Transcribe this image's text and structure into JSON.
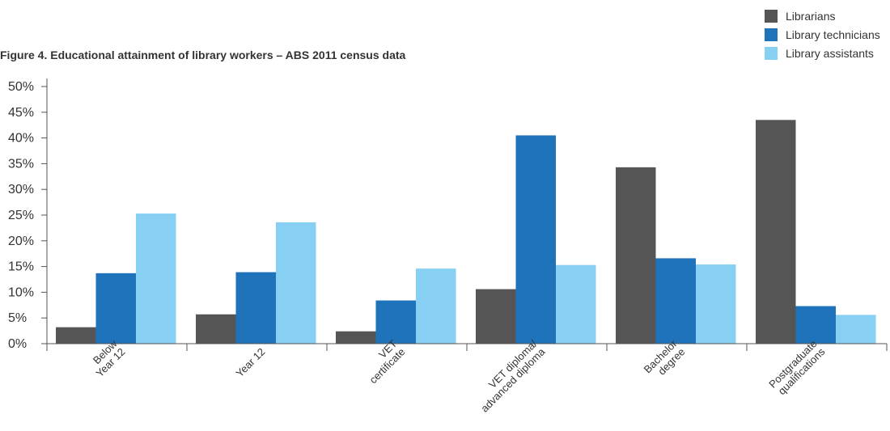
{
  "chart_data": {
    "type": "bar",
    "title": "Figure 4. Educational attainment of library workers – ABS 2011 census data",
    "categories": [
      [
        "Below",
        "Year 12"
      ],
      [
        "Year 12"
      ],
      [
        "VET",
        "certificate"
      ],
      [
        "VET diploma/",
        "advanced diploma"
      ],
      [
        "Bachelor",
        "degree"
      ],
      [
        "Postgraduate",
        "qualifications"
      ]
    ],
    "series": [
      {
        "name": "Librarians",
        "color": "#555555",
        "values": [
          3.2,
          5.7,
          2.4,
          10.6,
          34.3,
          43.5
        ]
      },
      {
        "name": "Library technicians",
        "color": "#1f73ba",
        "values": [
          13.7,
          13.9,
          8.4,
          40.5,
          16.6,
          7.3
        ]
      },
      {
        "name": "Library assistants",
        "color": "#87d0f3",
        "values": [
          25.3,
          23.6,
          14.6,
          15.3,
          15.4,
          5.6
        ]
      }
    ],
    "yticks": [
      "0%",
      "5%",
      "10%",
      "15%",
      "20%",
      "25%",
      "30%",
      "35%",
      "40%",
      "45%",
      "50%"
    ],
    "ylim": [
      0,
      50
    ],
    "xlabel": "",
    "ylabel": "",
    "legend_position": "top-right",
    "grid": false
  }
}
